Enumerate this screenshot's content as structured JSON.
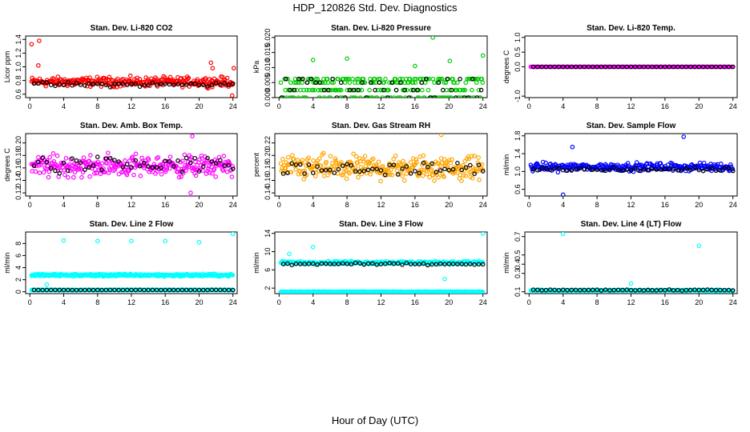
{
  "title": "HDP_120826  Std. Dev. Diagnostics",
  "xlabel": "Hour of Day (UTC)",
  "x_ticks": [
    0,
    4,
    8,
    12,
    16,
    20,
    24
  ],
  "chart_data": [
    {
      "type": "scatter",
      "title": "Stan. Dev. Li-820 CO2",
      "ylabel": "Licor ppm",
      "xlim": [
        -0.5,
        24.5
      ],
      "ylim": [
        0.55,
        1.45
      ],
      "yticks": [
        "0.6",
        "0.8",
        "1.0",
        "1.2",
        "1.4"
      ],
      "yticks_values": [
        0.6,
        0.8,
        1.0,
        1.2,
        1.4
      ],
      "color": "#ff0000",
      "black": "#000000",
      "bands": [
        {
          "center": 0.78,
          "spread": 0.1
        }
      ],
      "black_band": {
        "center": 0.74,
        "spread": 0.05
      },
      "outliers": [
        [
          0.2,
          1.33
        ],
        [
          1.1,
          1.38
        ],
        [
          1.0,
          1.02
        ],
        [
          21.4,
          1.06
        ],
        [
          21.6,
          0.98
        ],
        [
          23.9,
          0.58
        ],
        [
          24.1,
          0.98
        ]
      ]
    },
    {
      "type": "scatter",
      "title": "Stan. Dev. Li-820 Pressure",
      "ylabel": "kPa",
      "xlim": [
        -0.5,
        24.5
      ],
      "ylim": [
        0,
        0.0205
      ],
      "yticks": [
        "0.000",
        "0.005",
        "0.010",
        "0.015",
        "0.020"
      ],
      "yticks_values": [
        0.0,
        0.005,
        0.01,
        0.015,
        0.02
      ],
      "color": "#00cc00",
      "black": "#000000",
      "levels": [
        0.0,
        0.0025,
        0.005,
        0.0062
      ],
      "outliers": [
        [
          4.0,
          0.0125
        ],
        [
          8.0,
          0.013
        ],
        [
          16.0,
          0.0105
        ],
        [
          18.1,
          0.02
        ],
        [
          20.1,
          0.0122
        ],
        [
          24.0,
          0.014
        ]
      ]
    },
    {
      "type": "scatter",
      "title": "Stan. Dev. Li-820 Temp.",
      "ylabel": "degrees C",
      "xlim": [
        -0.5,
        24.5
      ],
      "ylim": [
        -1.05,
        1.05
      ],
      "yticks": [
        "-1.0",
        "0.0",
        "0.5",
        "1.0"
      ],
      "yticks_values": [
        -1.0,
        0.0,
        0.5,
        1.0
      ],
      "color": "#ff00ff",
      "black": "#000000",
      "constant": 0.0
    },
    {
      "type": "scatter",
      "title": "Stan. Dev. Amb. Box Temp.",
      "ylabel": "degrees C",
      "xlim": [
        -0.5,
        24.5
      ],
      "ylim": [
        0.115,
        0.215
      ],
      "yticks": [
        "0.12",
        "0.14",
        "0.16",
        "0.18",
        "0.20"
      ],
      "yticks_values": [
        0.12,
        0.14,
        0.16,
        0.18,
        0.2
      ],
      "color": "#ff00ff",
      "black": "#000000",
      "bands": [
        {
          "center": 0.163,
          "spread": 0.025
        }
      ],
      "black_band": {
        "center": 0.165,
        "spread": 0.02
      },
      "outliers": [
        [
          19.2,
          0.211
        ],
        [
          19.0,
          0.12
        ]
      ]
    },
    {
      "type": "scatter",
      "title": "Stan. Dev. Gas Stream RH",
      "ylabel": "percent",
      "xlim": [
        -0.5,
        24.5
      ],
      "ylim": [
        0.135,
        0.235
      ],
      "yticks": [
        "0.14",
        "0.16",
        "0.18",
        "0.20",
        "0.22"
      ],
      "yticks_values": [
        0.14,
        0.16,
        0.18,
        0.2,
        0.22
      ],
      "color": "#ffa500",
      "black": "#000000",
      "bands": [
        {
          "center": 0.18,
          "spread": 0.028
        }
      ],
      "black_band": {
        "center": 0.178,
        "spread": 0.015
      },
      "outliers": [
        [
          19.1,
          0.233
        ]
      ]
    },
    {
      "type": "scatter",
      "title": "Stan. Dev. Sample Flow",
      "ylabel": "ml/min",
      "xlim": [
        -0.5,
        24.5
      ],
      "ylim": [
        0.45,
        1.85
      ],
      "yticks": [
        "0.6",
        "1.0",
        "1.4",
        "1.8"
      ],
      "yticks_values": [
        0.6,
        1.0,
        1.4,
        1.8
      ],
      "color": "#0000ff",
      "black": "#000000",
      "bands": [
        {
          "center": 1.1,
          "spread": 0.13
        }
      ],
      "black_band": {
        "center": 1.05,
        "spread": 0.07
      },
      "outliers": [
        [
          18.2,
          1.78
        ],
        [
          4.0,
          0.48
        ],
        [
          5.1,
          1.55
        ]
      ]
    },
    {
      "type": "scatter",
      "title": "Stan. Dev. Line 2 Flow",
      "ylabel": "ml/min",
      "xlim": [
        -0.5,
        24.5
      ],
      "ylim": [
        -0.3,
        9.9
      ],
      "yticks": [
        "0",
        "2",
        "4",
        "6",
        "8"
      ],
      "yticks_values": [
        0,
        2,
        4,
        6,
        8
      ],
      "color": "#00ffff",
      "black": "#000000",
      "bands": [
        {
          "center": 2.75,
          "spread": 0.3
        },
        {
          "center": 0.3,
          "spread": 0.05
        }
      ],
      "black_band": {
        "center": 0.3,
        "spread": 0.03
      },
      "outliers": [
        [
          4.0,
          8.5
        ],
        [
          8.0,
          8.4
        ],
        [
          12.0,
          8.4
        ],
        [
          16.0,
          8.4
        ],
        [
          20.0,
          8.2
        ],
        [
          24.0,
          9.6
        ],
        [
          2.0,
          1.2
        ]
      ]
    },
    {
      "type": "scatter",
      "title": "Stan. Dev. Line 3 Flow",
      "ylabel": "ml/min",
      "xlim": [
        -0.5,
        24.5
      ],
      "ylim": [
        0.8,
        14.3
      ],
      "yticks": [
        "2",
        "6",
        "10",
        "14"
      ],
      "yticks_values": [
        2,
        6,
        10,
        14
      ],
      "color": "#00ffff",
      "black": "#000000",
      "bands": [
        {
          "center": 7.6,
          "spread": 0.5
        },
        {
          "center": 1.2,
          "spread": 0.1
        }
      ],
      "black_band": {
        "center": 7.3,
        "spread": 0.3
      },
      "outliers": [
        [
          4.0,
          11.0
        ],
        [
          24.0,
          14.0
        ],
        [
          1.2,
          9.5
        ],
        [
          19.5,
          4.0
        ]
      ]
    },
    {
      "type": "scatter",
      "title": "Stan. Dev. Line 4 (LT) Flow",
      "ylabel": "ml/min",
      "xlim": [
        -0.5,
        24.5
      ],
      "ylim": [
        0.08,
        0.75
      ],
      "yticks": [
        "0.1",
        "0.3",
        "0.4",
        "0.5",
        "0.7"
      ],
      "yticks_values": [
        0.1,
        0.3,
        0.4,
        0.5,
        0.7
      ],
      "color": "#00ffff",
      "black": "#000000",
      "bands": [
        {
          "center": 0.115,
          "spread": 0.01
        }
      ],
      "black_band": {
        "center": 0.118,
        "spread": 0.008
      },
      "outliers": [
        [
          4.0,
          0.73
        ],
        [
          20.0,
          0.6
        ],
        [
          12.0,
          0.19
        ]
      ]
    }
  ]
}
